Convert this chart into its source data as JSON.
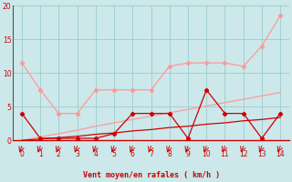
{
  "xlabel": "Vent moyen/en rafales ( km/h )",
  "x": [
    0,
    1,
    2,
    3,
    4,
    5,
    6,
    7,
    8,
    9,
    10,
    11,
    12,
    13,
    14
  ],
  "line_light_jagged": [
    11.5,
    7.5,
    4.0,
    4.0,
    7.5,
    7.5,
    7.5,
    7.5,
    11.0,
    11.5,
    11.5,
    11.5,
    11.0,
    14.0,
    18.5
  ],
  "line_light_slope": [
    0.0,
    0.5,
    1.0,
    1.5,
    2.1,
    2.6,
    3.1,
    3.6,
    4.1,
    4.6,
    5.1,
    5.6,
    6.1,
    6.6,
    7.1
  ],
  "line_dark_jagged": [
    4.0,
    0.3,
    0.3,
    0.3,
    0.3,
    1.0,
    4.0,
    4.0,
    4.0,
    0.3,
    7.5,
    4.0,
    4.0,
    0.3,
    4.0
  ],
  "line_dark_slope": [
    0.0,
    0.2,
    0.4,
    0.6,
    0.9,
    1.1,
    1.4,
    1.6,
    1.9,
    2.1,
    2.4,
    2.6,
    2.9,
    3.1,
    3.4
  ],
  "color_light": "#ff9999",
  "color_dark": "#cc0000",
  "bg_color": "#cce8ea",
  "grid_color": "#99cccc",
  "axis_color": "#cc0000",
  "ylim": [
    0,
    20
  ],
  "xlim": [
    -0.5,
    14.5
  ],
  "yticks": [
    0,
    5,
    10,
    15,
    20
  ],
  "xticks": [
    0,
    1,
    2,
    3,
    4,
    5,
    6,
    7,
    8,
    9,
    10,
    11,
    12,
    13,
    14
  ]
}
